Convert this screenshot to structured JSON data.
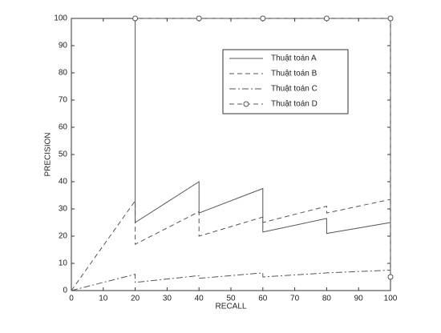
{
  "chart_data": {
    "type": "line",
    "xlabel": "RECALL",
    "ylabel": "PRECISION",
    "xlim": [
      0,
      100
    ],
    "ylim": [
      0,
      100
    ],
    "xticks": [
      0,
      10,
      20,
      30,
      40,
      50,
      60,
      70,
      80,
      90,
      100
    ],
    "yticks": [
      0,
      10,
      20,
      30,
      40,
      50,
      60,
      70,
      80,
      90,
      100
    ],
    "legend": "upper right",
    "series": [
      {
        "name": "Thuật toán A",
        "color": "#555555",
        "style": "solid",
        "x": [
          20,
          20,
          40,
          40,
          60,
          60,
          80,
          80,
          100
        ],
        "values": [
          100,
          25,
          40,
          28.5,
          37.5,
          21.5,
          26.5,
          21,
          25
        ]
      },
      {
        "name": "Thuật toán B",
        "color": "#555555",
        "style": "dashed",
        "x": [
          0,
          20,
          20,
          40,
          40,
          60,
          60,
          80,
          80,
          100
        ],
        "values": [
          0,
          33,
          17,
          29,
          20,
          27,
          25,
          31,
          28.5,
          33.5
        ]
      },
      {
        "name": "Thuật toán C",
        "color": "#555555",
        "style": "dashdot",
        "x": [
          0,
          20,
          20,
          40,
          40,
          60,
          60,
          80,
          100
        ],
        "values": [
          0,
          6,
          3,
          5.5,
          4.5,
          6.5,
          5,
          6.5,
          7.5
        ]
      },
      {
        "name": "Thuật toán D",
        "color": "#555555",
        "style": "dashed",
        "marker": "circle",
        "x": [
          20,
          40,
          60,
          80,
          100,
          100
        ],
        "values": [
          100,
          100,
          100,
          100,
          100,
          5
        ]
      }
    ]
  }
}
